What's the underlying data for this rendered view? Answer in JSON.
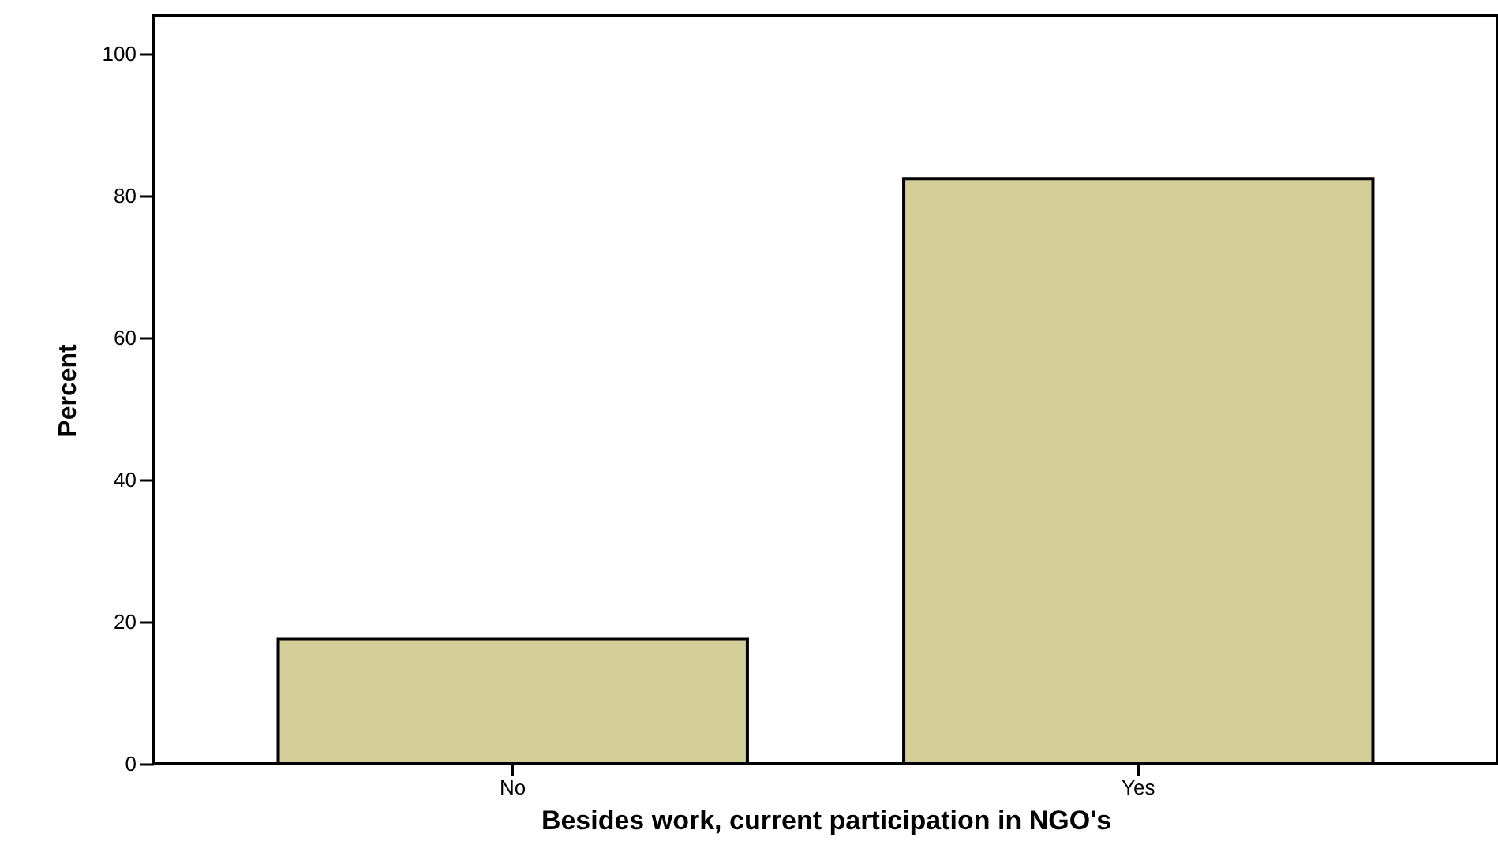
{
  "chart_data": {
    "type": "bar",
    "xlabel": "Besides work, current participation in NGO's",
    "ylabel": "Percent",
    "categories": [
      "No",
      "Yes"
    ],
    "values": [
      17.6,
      82.4
    ],
    "color": "#d3cd98",
    "ylim": [
      0,
      105.3
    ],
    "yticks": [
      0,
      20,
      40,
      60,
      80,
      100
    ],
    "grid": false
  }
}
